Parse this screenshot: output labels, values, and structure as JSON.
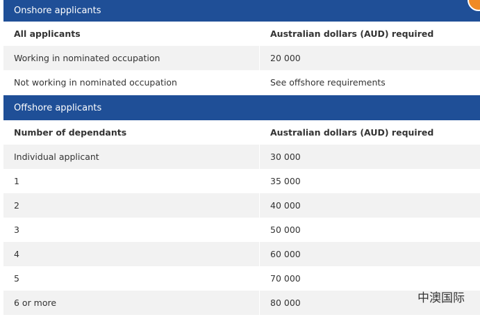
{
  "sections": [
    {
      "title": "Onshore applicants",
      "header": [
        "All applicants",
        "Australian dollars (AUD) required"
      ],
      "rows": [
        [
          "Working in nominated occupation",
          "20 000"
        ],
        [
          "Not working in nominated occupation",
          "See offshore requirements"
        ]
      ]
    },
    {
      "title": "Offshore applicants",
      "header": [
        "Number of dependants",
        "Australian dollars (AUD) required"
      ],
      "rows": [
        [
          "Individual applicant",
          "30 000"
        ],
        [
          "1",
          "35 000"
        ],
        [
          "2",
          "40 000"
        ],
        [
          "3",
          "50 000"
        ],
        [
          "4",
          "60 000"
        ],
        [
          "5",
          "70 000"
        ],
        [
          "6 or more",
          "80 000"
        ]
      ]
    }
  ],
  "watermark": "中澳国际"
}
